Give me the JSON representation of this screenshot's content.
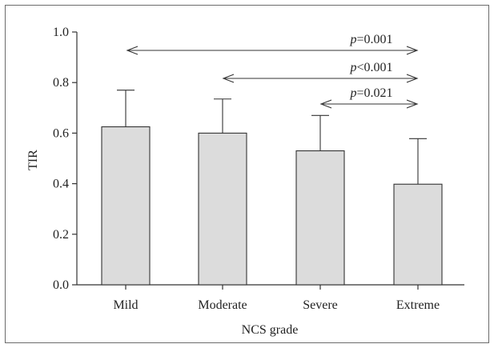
{
  "chart_data": {
    "type": "bar",
    "title": "",
    "xlabel": "NCS grade",
    "ylabel": "TIR",
    "categories": [
      "Mild",
      "Moderate",
      "Severe",
      "Extreme"
    ],
    "values": [
      0.625,
      0.6,
      0.53,
      0.398
    ],
    "error_upper": [
      0.77,
      0.735,
      0.67,
      0.578
    ],
    "ylim": [
      0.0,
      1.0
    ],
    "yticks": [
      "0.0",
      "0.2",
      "0.4",
      "0.6",
      "0.8",
      "1.0"
    ],
    "grid": false,
    "bar_color": "#dcdcdc",
    "bar_edge_color": "#333333",
    "annotations": [
      {
        "from": "Mild",
        "to": "Extreme",
        "p_symbol": "p",
        "p_text": "=0.001"
      },
      {
        "from": "Moderate",
        "to": "Extreme",
        "p_symbol": "p",
        "p_text": "<0.001"
      },
      {
        "from": "Severe",
        "to": "Extreme",
        "p_symbol": "p",
        "p_text": "=0.021"
      }
    ]
  }
}
